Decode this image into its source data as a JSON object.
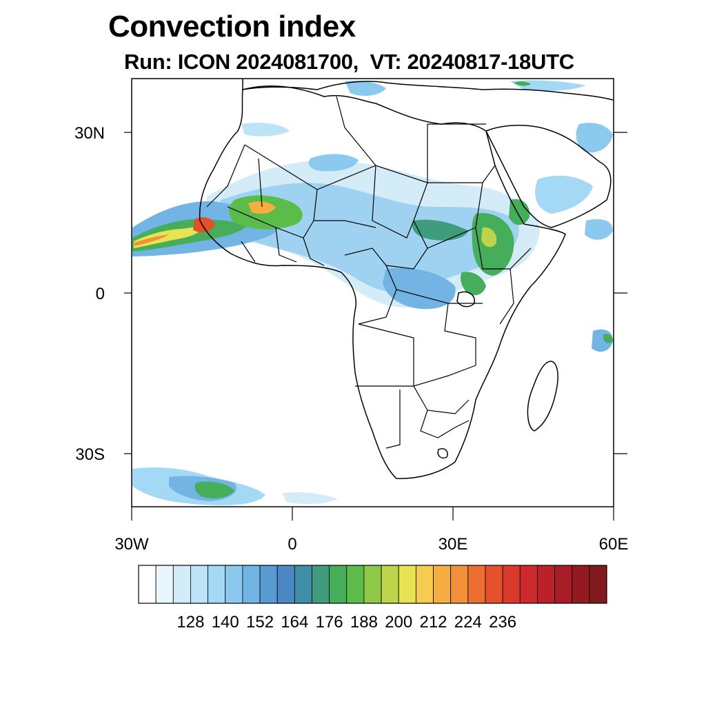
{
  "title": "Convection index",
  "subtitle": "Run: ICON 2024081700,  VT: 20240817-18UTC",
  "map": {
    "lon_range": [
      -30,
      60
    ],
    "lat_range": [
      -40,
      40
    ],
    "lat_labels": [
      "30N",
      "0",
      "30S"
    ],
    "lon_labels": [
      "30W",
      "0",
      "30E",
      "60E"
    ]
  },
  "colorbar": {
    "labels": [
      "128",
      "140",
      "152",
      "164",
      "176",
      "188",
      "200",
      "212",
      "224",
      "236"
    ],
    "colors": [
      "#ffffff",
      "#eaf6fd",
      "#d3ecf8",
      "#bde3f6",
      "#a4d9f5",
      "#8cc9ee",
      "#72b4e3",
      "#5a9ad2",
      "#4a89c4",
      "#3f8fa8",
      "#3f9c7d",
      "#46ad5a",
      "#5cbc4a",
      "#90c847",
      "#bdd44b",
      "#e8e355",
      "#f7cb52",
      "#f6ae43",
      "#f3913a",
      "#ed6e31",
      "#e4502c",
      "#da3a2c",
      "#cc2a2c",
      "#bb212b",
      "#a71c25",
      "#931a21",
      "#801a1f"
    ]
  }
}
